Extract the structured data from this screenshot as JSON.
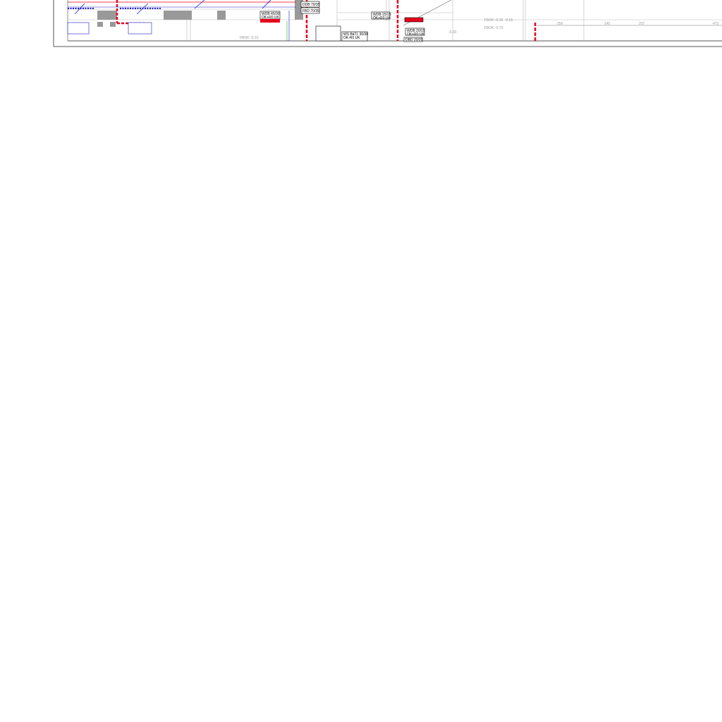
{
  "drawing": {
    "labels": {
      "door1": "DDB 70/35",
      "door2": "FBD 70/35",
      "wdb1_a": "WDB 45/30",
      "wdb1_b": "OK+R0 UK",
      "wdb2_a": "WDB 15/15",
      "wdb2_b": "OK+R0 UK",
      "wdb3_a": "WDB 20/15",
      "wdb3_b": "OK+R0 UK",
      "ws_a": "WS BäTL 30/30",
      "ws_b": "OK-R0 UK",
      "dbd": "DBD 20/20",
      "fbok1": "FBOK -0,36",
      "fbok2": "FBOK -0,70",
      "fbok3": "FBOK -0,10",
      "lvl": "-0,30",
      "lvl2": "-0,55",
      "lvl3": "-0,70"
    },
    "dimensions": [
      "256",
      "145",
      "207",
      "472"
    ],
    "colors": {
      "fire_wall": "#e8001c",
      "duct_blue": "#1a1acc",
      "line": "#888888"
    }
  }
}
